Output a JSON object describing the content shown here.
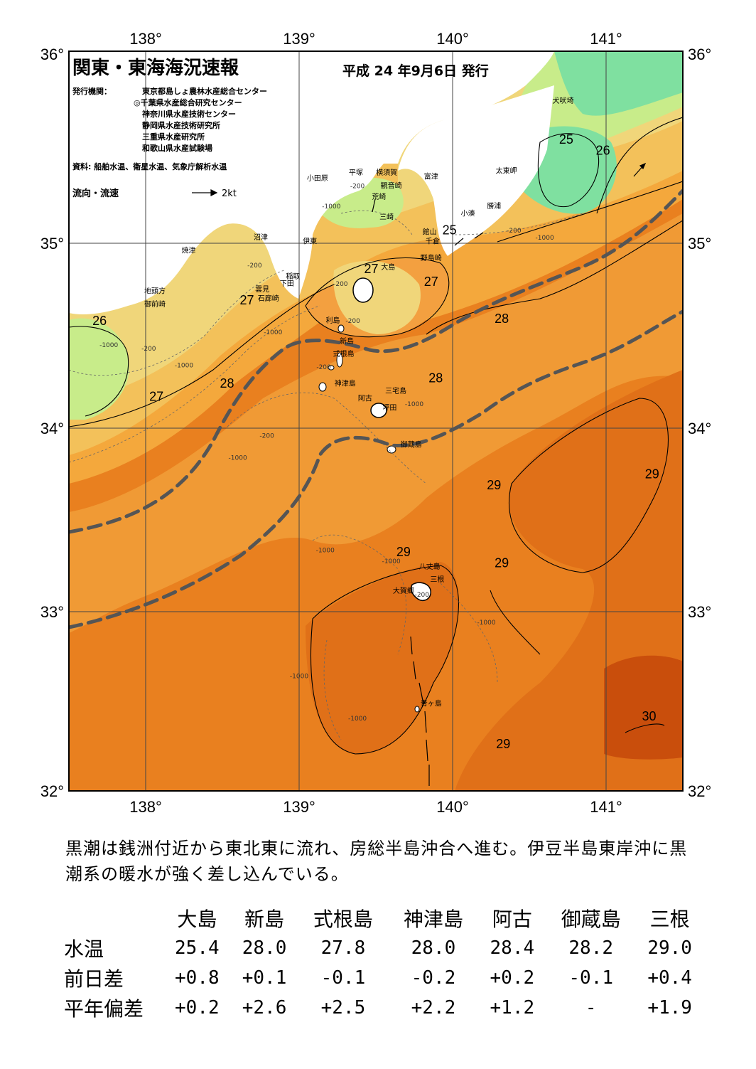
{
  "header": {
    "title": "関東・東海海況速報",
    "date": "平成 24 年9月6日 発行",
    "issuer_label": "発行機関：",
    "issuers": [
      "東京都島しょ農林水産総合センター",
      "◎千葉県水産総合研究センター",
      "神奈川県水産技術センター",
      "静岡県水産技術研究所",
      "三重県水産研究所",
      "和歌山県水産試験場"
    ],
    "source": "資料: 船舶水温、衛星水温、気象庁解析水温",
    "legend_label": "流向・流速",
    "legend_scale": "2kt"
  },
  "axes": {
    "lon_ticks": [
      "138°",
      "139°",
      "140°",
      "141°"
    ],
    "lat_ticks": [
      "36°",
      "35°",
      "34°",
      "33°",
      "32°"
    ],
    "lon_range": [
      137.5,
      141.5
    ],
    "lat_range": [
      32,
      36
    ]
  },
  "colors": {
    "t25": "#7fe0a0",
    "t26": "#c8ec8a",
    "t27": "#f0d67a",
    "t27_5": "#f3be58",
    "t28": "#f4a83c",
    "t28_5": "#ee922c",
    "t29": "#e9801f",
    "t29_5": "#e07018",
    "t30": "#c94e0c",
    "land": "#ffffff",
    "kuroshio_line": "#555555"
  },
  "places": [
    {
      "name": "犬吠埼",
      "lon": 140.72,
      "lat": 35.72
    },
    {
      "name": "富津",
      "lon": 139.86,
      "lat": 35.31
    },
    {
      "name": "太東岬",
      "lon": 140.35,
      "lat": 35.34
    },
    {
      "name": "勝浦",
      "lon": 140.27,
      "lat": 35.15
    },
    {
      "name": "小湊",
      "lon": 140.1,
      "lat": 35.11
    },
    {
      "name": "館山",
      "lon": 139.85,
      "lat": 35.01
    },
    {
      "name": "千倉",
      "lon": 139.87,
      "lat": 34.96
    },
    {
      "name": "野島崎",
      "lon": 139.86,
      "lat": 34.87
    },
    {
      "name": "小田原",
      "lon": 139.12,
      "lat": 35.3
    },
    {
      "name": "平塚",
      "lon": 139.37,
      "lat": 35.33
    },
    {
      "name": "横須賀",
      "lon": 139.57,
      "lat": 35.33
    },
    {
      "name": "観音崎",
      "lon": 139.6,
      "lat": 35.26
    },
    {
      "name": "荒崎",
      "lon": 139.52,
      "lat": 35.2
    },
    {
      "name": "三崎",
      "lon": 139.57,
      "lat": 35.09
    },
    {
      "name": "沼津",
      "lon": 138.75,
      "lat": 34.98
    },
    {
      "name": "伊東",
      "lon": 139.07,
      "lat": 34.96
    },
    {
      "name": "焼津",
      "lon": 138.28,
      "lat": 34.91
    },
    {
      "name": "稲取",
      "lon": 138.96,
      "lat": 34.77
    },
    {
      "name": "下田",
      "lon": 138.92,
      "lat": 34.73
    },
    {
      "name": "雲見",
      "lon": 138.76,
      "lat": 34.7
    },
    {
      "name": "石廊崎",
      "lon": 138.8,
      "lat": 34.65
    },
    {
      "name": "地頭方",
      "lon": 138.06,
      "lat": 34.69
    },
    {
      "name": "御前崎",
      "lon": 138.06,
      "lat": 34.62
    },
    {
      "name": "大島",
      "lon": 139.58,
      "lat": 34.82
    },
    {
      "name": "利島",
      "lon": 139.22,
      "lat": 34.53
    },
    {
      "name": "新島",
      "lon": 139.31,
      "lat": 34.42
    },
    {
      "name": "式根島",
      "lon": 139.29,
      "lat": 34.35
    },
    {
      "name": "神津島",
      "lon": 139.3,
      "lat": 34.19
    },
    {
      "name": "三宅島",
      "lon": 139.63,
      "lat": 34.15
    },
    {
      "name": "阿古",
      "lon": 139.43,
      "lat": 34.11
    },
    {
      "name": "坪田",
      "lon": 139.59,
      "lat": 34.06
    },
    {
      "name": "御蔵島",
      "lon": 139.73,
      "lat": 33.86
    },
    {
      "name": "八丈島",
      "lon": 139.85,
      "lat": 33.2
    },
    {
      "name": "三根",
      "lon": 139.9,
      "lat": 33.13
    },
    {
      "name": "大賀郷",
      "lon": 139.68,
      "lat": 33.07
    },
    {
      "name": "青ヶ島",
      "lon": 139.86,
      "lat": 32.46
    }
  ],
  "isotherm_labels": [
    {
      "text": "25",
      "lon": 140.74,
      "lat": 35.5
    },
    {
      "text": "26",
      "lon": 140.98,
      "lat": 35.44
    },
    {
      "text": "25",
      "lon": 139.98,
      "lat": 35.01
    },
    {
      "text": "27",
      "lon": 139.47,
      "lat": 34.8
    },
    {
      "text": "27",
      "lon": 139.86,
      "lat": 34.73
    },
    {
      "text": "27",
      "lon": 138.66,
      "lat": 34.63
    },
    {
      "text": "28",
      "lon": 140.32,
      "lat": 34.53
    },
    {
      "text": "26",
      "lon": 137.7,
      "lat": 34.52
    },
    {
      "text": "28",
      "lon": 138.53,
      "lat": 34.18
    },
    {
      "text": "28",
      "lon": 139.89,
      "lat": 34.21
    },
    {
      "text": "27",
      "lon": 138.07,
      "lat": 34.11
    },
    {
      "text": "29",
      "lon": 140.27,
      "lat": 33.63
    },
    {
      "text": "29",
      "lon": 141.3,
      "lat": 33.69
    },
    {
      "text": "29",
      "lon": 139.68,
      "lat": 33.27
    },
    {
      "text": "29",
      "lon": 140.32,
      "lat": 33.21
    },
    {
      "text": "30",
      "lon": 141.28,
      "lat": 32.38
    },
    {
      "text": "29",
      "lon": 140.33,
      "lat": 32.23
    }
  ],
  "depth_labels": [
    {
      "text": "-200",
      "lon": 139.38,
      "lat": 35.26
    },
    {
      "text": "-1000",
      "lon": 139.21,
      "lat": 35.15
    },
    {
      "text": "-200",
      "lon": 138.71,
      "lat": 34.83
    },
    {
      "text": "-200",
      "lon": 139.27,
      "lat": 34.73
    },
    {
      "text": "-200",
      "lon": 139.35,
      "lat": 34.53
    },
    {
      "text": "-1000",
      "lon": 138.83,
      "lat": 34.47
    },
    {
      "text": "-1000",
      "lon": 137.76,
      "lat": 34.4
    },
    {
      "text": "-200",
      "lon": 138.02,
      "lat": 34.38
    },
    {
      "text": "-1000",
      "lon": 138.25,
      "lat": 34.29
    },
    {
      "text": "-200",
      "lon": 139.16,
      "lat": 34.28
    },
    {
      "text": "-1000",
      "lon": 139.75,
      "lat": 34.08
    },
    {
      "text": "-200",
      "lon": 138.79,
      "lat": 33.91
    },
    {
      "text": "-1000",
      "lon": 138.6,
      "lat": 33.79
    },
    {
      "text": "-1000",
      "lon": 140.6,
      "lat": 34.98
    },
    {
      "text": "-200",
      "lon": 140.4,
      "lat": 35.02
    },
    {
      "text": "-1000",
      "lon": 139.17,
      "lat": 33.29
    },
    {
      "text": "-1000",
      "lon": 139.6,
      "lat": 33.23
    },
    {
      "text": "-200",
      "lon": 139.8,
      "lat": 33.05
    },
    {
      "text": "-1000",
      "lon": 140.22,
      "lat": 32.9
    },
    {
      "text": "-1000",
      "lon": 139.0,
      "lat": 32.61
    },
    {
      "text": "-1000",
      "lon": 139.38,
      "lat": 32.38
    }
  ],
  "summary_text": "黒潮は銭洲付近から東北東に流れ、房総半島沖合へ進む。伊豆半島東岸沖に黒潮系の暖水が強く差し込んでいる。",
  "table": {
    "stations": [
      "大島",
      "新島",
      "式根島",
      "神津島",
      "阿古",
      "御蔵島",
      "三根"
    ],
    "rows": [
      {
        "label": "水温",
        "values": [
          "25.4",
          "28.0",
          "27.8",
          "28.0",
          "28.4",
          "28.2",
          "29.0"
        ]
      },
      {
        "label": "前日差",
        "values": [
          "+0.8",
          "+0.1",
          "-0.1",
          "-0.2",
          "+0.2",
          "-0.1",
          "+0.4"
        ]
      },
      {
        "label": "平年偏差",
        "values": [
          "+0.2",
          "+2.6",
          "+2.5",
          "+2.2",
          "+1.2",
          "-",
          "+1.9"
        ]
      }
    ]
  }
}
